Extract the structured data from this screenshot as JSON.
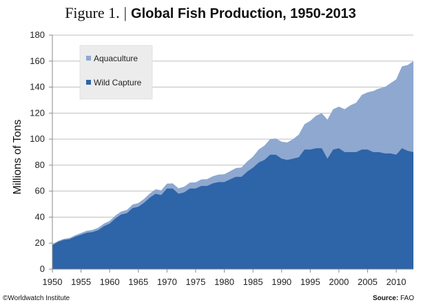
{
  "header": {
    "figure_label": "Figure 1.",
    "separator": "|",
    "title": "Global Fish Production, 1950-2013"
  },
  "footer": {
    "credit": "©Worldwatch  Institute",
    "source_label": "Source:",
    "source_value": "FAO"
  },
  "colors": {
    "wild_capture": "#2e64a8",
    "aquaculture": "#8ea8d0",
    "grid": "#bfbfbf",
    "legend_bg": "#ececec"
  },
  "chart_data": {
    "type": "area",
    "stacked": true,
    "ylabel": "Millions of Tons",
    "xlabel": "",
    "xlim": [
      1950,
      2013
    ],
    "ylim": [
      0,
      180
    ],
    "x_ticks": [
      1950,
      1955,
      1960,
      1965,
      1970,
      1975,
      1980,
      1985,
      1990,
      1995,
      2000,
      2005,
      2010
    ],
    "y_ticks": [
      0,
      20,
      40,
      60,
      80,
      100,
      120,
      140,
      160,
      180
    ],
    "grid": "horizontal",
    "legend_position": "top-left",
    "x": [
      1950,
      1951,
      1952,
      1953,
      1954,
      1955,
      1956,
      1957,
      1958,
      1959,
      1960,
      1961,
      1962,
      1963,
      1964,
      1965,
      1966,
      1967,
      1968,
      1969,
      1970,
      1971,
      1972,
      1973,
      1974,
      1975,
      1976,
      1977,
      1978,
      1979,
      1980,
      1981,
      1982,
      1983,
      1984,
      1985,
      1986,
      1987,
      1988,
      1989,
      1990,
      1991,
      1992,
      1993,
      1994,
      1995,
      1996,
      1997,
      1998,
      1999,
      2000,
      2001,
      2002,
      2003,
      2004,
      2005,
      2006,
      2007,
      2008,
      2009,
      2010,
      2011,
      2012,
      2013
    ],
    "series": [
      {
        "name": "Wild Capture",
        "values": [
          18.5,
          21,
          22.5,
          23,
          25,
          26.5,
          28,
          28.5,
          30,
          33,
          35,
          39,
          42,
          43,
          47,
          48,
          51,
          55,
          58,
          57,
          62,
          62,
          58,
          59,
          62,
          62,
          64,
          64,
          66,
          67,
          67,
          69,
          71,
          71,
          75,
          78,
          82,
          84,
          88,
          88,
          85,
          84,
          85,
          86,
          92,
          92,
          93,
          93,
          85,
          92,
          93,
          90,
          90,
          90,
          92,
          92,
          90,
          90,
          89,
          89,
          88,
          93,
          91,
          90
        ]
      },
      {
        "name": "Aquaculture",
        "values": [
          0.5,
          0.7,
          0.8,
          1,
          1.1,
          1.3,
          1.5,
          1.7,
          1.9,
          2,
          2.1,
          2.2,
          2.3,
          2.5,
          2.7,
          2.8,
          3,
          3.2,
          3.4,
          3.6,
          3.8,
          4,
          4.2,
          4.4,
          4.6,
          4.8,
          5,
          5.2,
          5.5,
          5.7,
          6,
          6.3,
          6.7,
          7.2,
          7.8,
          8.5,
          10,
          11,
          12,
          12.5,
          13,
          13.5,
          15,
          17.5,
          19.5,
          22,
          25,
          27,
          30,
          31,
          32,
          33,
          36,
          38,
          42,
          44,
          47,
          49,
          51,
          54,
          58,
          63,
          66,
          70
        ]
      }
    ]
  }
}
